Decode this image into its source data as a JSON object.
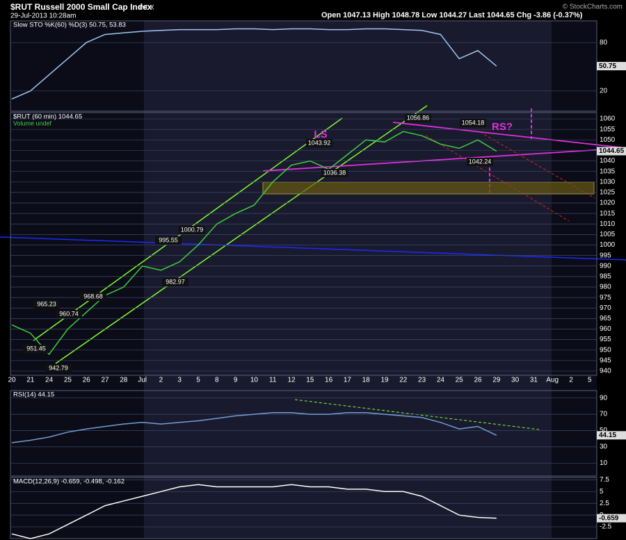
{
  "header": {
    "title": "$RUT Russell 2000 Small Cap Index",
    "exchange": "INDX",
    "date": "29-Jul-2013 10:28am",
    "quote": "Open 1047.13  High 1048.78  Low 1044.27  Last 1044.65  Chg -3.86 (-0.37%)",
    "credit": "© StockCharts.com"
  },
  "chart_data": [
    {
      "type": "line",
      "title": "Slow STO %K(60) %D(3) 50.75, 53.83",
      "color": "#9fc8f0",
      "values": [
        10,
        20,
        40,
        60,
        80,
        90,
        92,
        94,
        95,
        96,
        96,
        96,
        97,
        97,
        96,
        97,
        97,
        96,
        96,
        97,
        97,
        96,
        95,
        90,
        60,
        70,
        50.75,
        null,
        null,
        null,
        null,
        null
      ],
      "ylim": [
        0,
        100
      ],
      "yticks": [
        20,
        80
      ],
      "current": 50.75
    },
    {
      "type": "line",
      "title": "$RUT (60 min) 1044.65",
      "subtitle": "Volume undef",
      "color": "#3fcf3f",
      "categories": [
        "20",
        "21",
        "24",
        "25",
        "26",
        "27",
        "28",
        "Jul",
        "2",
        "3",
        "5",
        "8",
        "9",
        "10",
        "11",
        "12",
        "15",
        "16",
        "17",
        "18",
        "19",
        "22",
        "23",
        "24",
        "25",
        "26",
        "29",
        "30",
        "31",
        "Aug",
        "2",
        "5"
      ],
      "values": [
        962,
        958,
        948,
        960,
        968,
        976,
        980,
        990,
        988,
        992,
        1000,
        1010,
        1015,
        1019,
        1030,
        1038,
        1040,
        1036,
        1043,
        1050,
        1049,
        1054,
        1052,
        1048,
        1046,
        1050,
        1044.65,
        null,
        null,
        null,
        null,
        null
      ],
      "ylim": [
        938,
        1063
      ],
      "yticks": [
        940,
        945,
        950,
        955,
        960,
        965,
        970,
        975,
        980,
        985,
        990,
        995,
        1000,
        1005,
        1010,
        1015,
        1020,
        1025,
        1030,
        1035,
        1040,
        1045,
        1050,
        1055,
        1060
      ],
      "current": 1044.65,
      "price_labels": [
        1043.92,
        1036.38,
        1056.86,
        1054.18,
        1042.24,
        1000.79,
        995.55,
        982.97,
        968.68,
        965.23,
        960.74,
        951.45,
        942.79
      ],
      "annotations": [
        "LS",
        "RS?"
      ]
    },
    {
      "type": "line",
      "title": "RSI(14) 44.15",
      "color": "#6f9fd8",
      "values": [
        35,
        38,
        42,
        48,
        52,
        55,
        58,
        60,
        58,
        60,
        62,
        65,
        68,
        70,
        72,
        72,
        70,
        70,
        72,
        72,
        70,
        68,
        66,
        60,
        52,
        55,
        44.15,
        null,
        null,
        null,
        null,
        null
      ],
      "ylim": [
        0,
        100
      ],
      "yticks": [
        10,
        30,
        50,
        70,
        90
      ],
      "current": 44.15
    },
    {
      "type": "line",
      "title": "MACD(12,26,9) -0.659, -0.498, -0.162",
      "color": "#ffffff",
      "values": [
        -4,
        -5,
        -4,
        -2,
        0,
        2,
        3,
        4,
        5,
        6,
        6.5,
        6,
        6,
        6,
        6,
        6.5,
        6,
        6,
        5.5,
        5.5,
        5,
        5,
        4,
        2,
        0,
        -0.5,
        -0.659,
        null,
        null,
        null,
        null,
        null
      ],
      "ylim": [
        -5,
        8
      ],
      "yticks": [
        -2.5,
        0,
        2.5,
        5,
        7.5
      ],
      "current": -0.659
    }
  ]
}
